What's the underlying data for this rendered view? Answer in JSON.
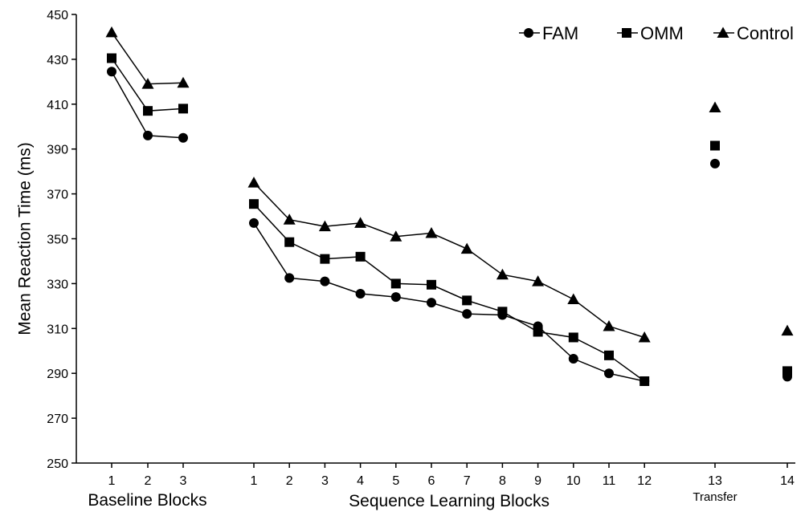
{
  "chart_data": {
    "type": "line",
    "ylabel": "Mean Reaction Time (ms)",
    "ylim": [
      250,
      450
    ],
    "yticks": [
      250,
      270,
      290,
      310,
      330,
      350,
      370,
      390,
      410,
      430,
      450
    ],
    "grid": false,
    "legend_position": "top-right",
    "groups": [
      {
        "label": "Baseline Blocks",
        "ticks": [
          "1",
          "2",
          "3"
        ]
      },
      {
        "label": "Sequence Learning Blocks",
        "ticks": [
          "1",
          "2",
          "3",
          "4",
          "5",
          "6",
          "7",
          "8",
          "9",
          "10",
          "11",
          "12"
        ]
      },
      {
        "label": "Transfer",
        "ticks": [
          "13"
        ]
      },
      {
        "label": "",
        "ticks": [
          "14"
        ]
      }
    ],
    "series": [
      {
        "name": "FAM",
        "marker": "circle",
        "baseline": [
          424.5,
          396,
          395
        ],
        "sequence": [
          357,
          332.5,
          331,
          325.5,
          324,
          321.5,
          316.5,
          316,
          311,
          296.5,
          290,
          286.5
        ],
        "transfer": 383.5,
        "block14": 288.5
      },
      {
        "name": "OMM",
        "marker": "square",
        "baseline": [
          430.5,
          407,
          408
        ],
        "sequence": [
          365.5,
          348.5,
          341,
          342,
          330,
          329.5,
          322.5,
          317.5,
          308.5,
          306,
          298,
          286.5
        ],
        "transfer": 391.5,
        "block14": 291
      },
      {
        "name": "Control",
        "marker": "triangle",
        "baseline": [
          442,
          419,
          419.5
        ],
        "sequence": [
          375,
          358.5,
          355.5,
          357,
          351,
          352.5,
          345.5,
          334,
          331,
          323,
          311,
          306
        ],
        "transfer": 408.5,
        "block14": 309
      }
    ]
  }
}
